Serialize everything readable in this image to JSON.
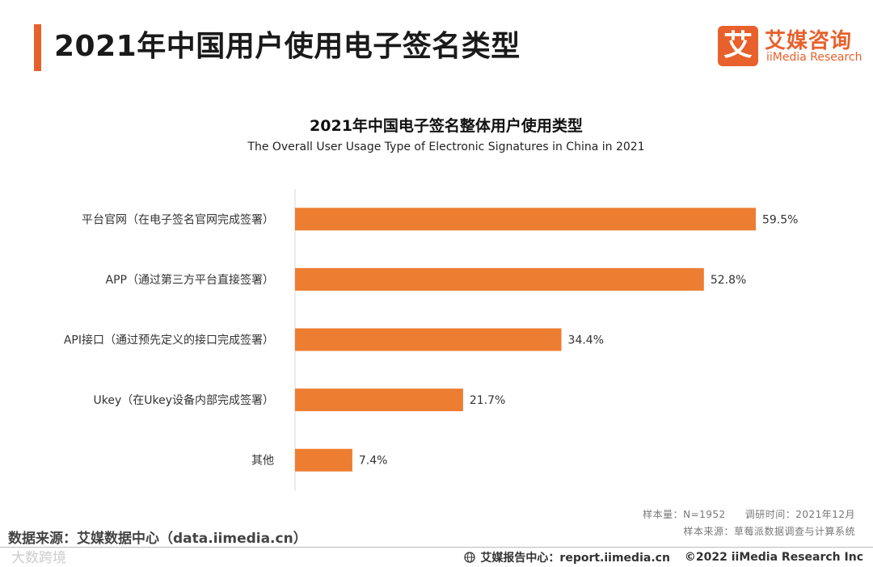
{
  "header": {
    "title": "2021年中国用户使用电子签名类型",
    "logo_mark": "艾",
    "logo_cn": "艾媒咨询",
    "logo_en": "iiMedia Research"
  },
  "chart_data": {
    "type": "bar",
    "orientation": "horizontal",
    "title": "2021年中国电子签名整体用户使用类型",
    "subtitle": "The Overall User Usage Type of Electronic Signatures in China in 2021",
    "categories": [
      "平台官网（在电子签名官网完成签署）",
      "APP（通过第三方平台直接签署）",
      "API接口（通过预先定义的接口完成签署）",
      "Ukey（在Ukey设备内部完成签署）",
      "其他"
    ],
    "values": [
      59.5,
      52.8,
      34.4,
      21.7,
      7.4
    ],
    "value_labels": [
      "59.5%",
      "52.8%",
      "34.4%",
      "21.7%",
      "7.4%"
    ],
    "unit": "%",
    "xlim": [
      0,
      59.5
    ],
    "bar_color": "#ed7d31"
  },
  "meta": {
    "sample_size": "样本量：N=1952",
    "survey_time": "调研时间：2021年12月",
    "sample_source": "样本来源：草莓派数据调查与计算系统"
  },
  "footer": {
    "source": "数据来源：艾媒数据中心（data.iimedia.cn）",
    "watermark": "大数跨境",
    "report_center": "艾媒报告中心：report.iimedia.cn",
    "copyright": "©2022  iiMedia Research  Inc"
  },
  "colors": {
    "accent": "#e8612c",
    "bar": "#ed7d31"
  }
}
